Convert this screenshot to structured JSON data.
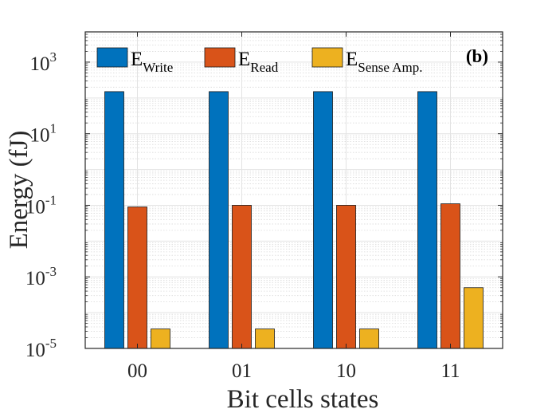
{
  "chart_data": {
    "type": "bar",
    "title": "",
    "panel_label": "(b)",
    "xlabel": "Bit cells states",
    "ylabel": "Energy (fJ)",
    "yscale": "log",
    "ylim": [
      1e-05,
      7000
    ],
    "yticks": [
      {
        "value": 1e-05,
        "base": "10",
        "exp": "-5"
      },
      {
        "value": 0.001,
        "base": "10",
        "exp": "-3"
      },
      {
        "value": 0.1,
        "base": "10",
        "exp": "-1"
      },
      {
        "value": 10,
        "base": "10",
        "exp": "1"
      },
      {
        "value": 1000,
        "base": "10",
        "exp": "3"
      }
    ],
    "grid": true,
    "minor_grid": true,
    "legend_position": "top",
    "categories": [
      "00",
      "01",
      "10",
      "11"
    ],
    "series": [
      {
        "name_main": "E",
        "name_sub": "Write",
        "color": "#0072BD",
        "values": [
          150,
          150,
          150,
          150
        ]
      },
      {
        "name_main": "E",
        "name_sub": "Read",
        "color": "#D95319",
        "values": [
          0.09,
          0.1,
          0.1,
          0.11
        ]
      },
      {
        "name_main": "E",
        "name_sub": "Sense Amp.",
        "color": "#EDB120",
        "values": [
          3.5e-05,
          3.5e-05,
          3.5e-05,
          0.0005
        ]
      }
    ]
  }
}
